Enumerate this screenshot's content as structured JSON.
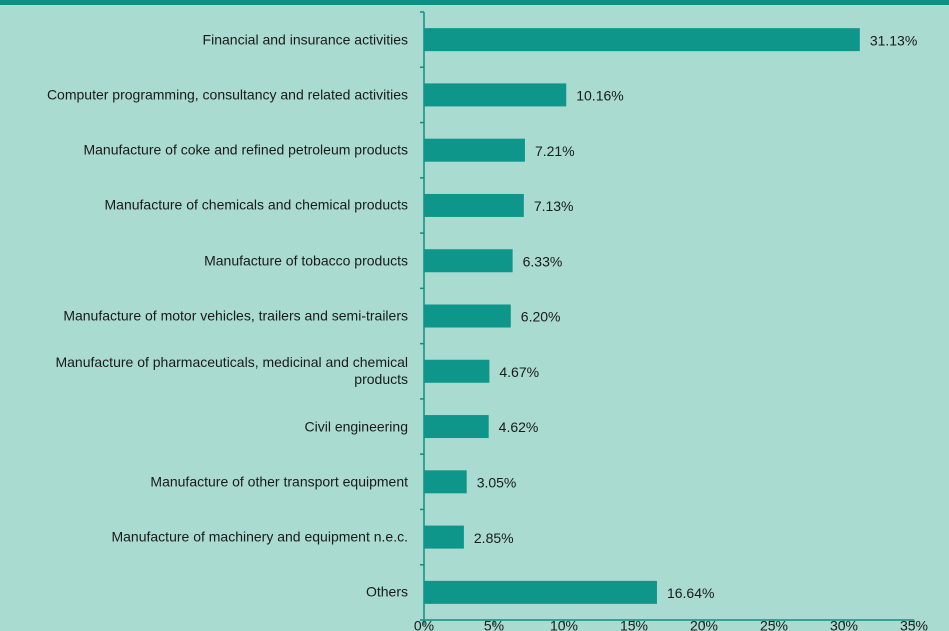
{
  "chart_data": {
    "type": "bar",
    "orientation": "horizontal",
    "categories": [
      "Financial and insurance activities",
      "Computer programming, consultancy and related activities",
      "Manufacture of coke and refined petroleum products",
      "Manufacture of chemicals and chemical products",
      "Manufacture of tobacco products",
      "Manufacture of motor vehicles, trailers and semi-trailers",
      "Manufacture of pharmaceuticals, medicinal and chemical products",
      "Civil engineering",
      "Manufacture of other transport equipment",
      "Manufacture of machinery and equipment n.e.c.",
      "Others"
    ],
    "values": [
      31.13,
      10.16,
      7.21,
      7.13,
      6.33,
      6.2,
      4.67,
      4.62,
      3.05,
      2.85,
      16.64
    ],
    "value_labels": [
      "31.13%",
      "10.16%",
      "7.21%",
      "7.13%",
      "6.33%",
      "6.20%",
      "4.67%",
      "4.62%",
      "3.05%",
      "2.85%",
      "16.64%"
    ],
    "color": "#0e968a",
    "xlim": [
      0,
      35
    ],
    "xticks": [
      {
        "value": 0,
        "label": "0%"
      },
      {
        "value": 5,
        "label": "5%"
      },
      {
        "value": 10,
        "label": "10%"
      },
      {
        "value": 15,
        "label": "15%"
      },
      {
        "value": 20,
        "label": "20%"
      },
      {
        "value": 25,
        "label": "25%"
      },
      {
        "value": 30,
        "label": "30%"
      },
      {
        "value": 35,
        "label": "35%"
      }
    ]
  }
}
